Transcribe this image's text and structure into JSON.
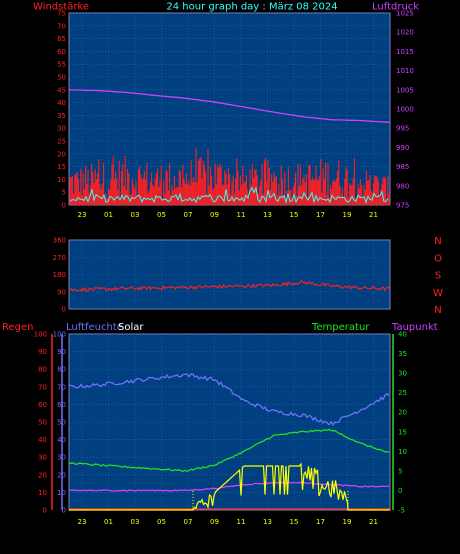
{
  "title": "24 hour graph day : März 08 2024",
  "hours": [
    "23",
    "01",
    "03",
    "05",
    "07",
    "09",
    "11",
    "13",
    "15",
    "17",
    "19",
    "21"
  ],
  "colors": {
    "bg": "#004080",
    "grid": "#3366aa",
    "wind": "#ff2020",
    "gust": "#30ffff",
    "pressure": "#d040ff",
    "winddir": "#ff2020",
    "humidity": "#7070ff",
    "temp": "#20e020",
    "dew": "#d040ff",
    "solar": "#ffff00",
    "rain": "#ff3030"
  },
  "panel1": {
    "left_label": "Windstärke",
    "right_label": "Luftdruck",
    "left_ticks": [
      "0",
      "5",
      "10",
      "15",
      "20",
      "25",
      "30",
      "35",
      "40",
      "45",
      "50",
      "55",
      "60",
      "65",
      "70",
      "75"
    ],
    "right_ticks": [
      "975",
      "980",
      "985",
      "990",
      "995",
      "1000",
      "1005",
      "1010",
      "1015",
      "1020",
      "1025"
    ]
  },
  "panel2": {
    "ticks": [
      "0",
      "90",
      "180",
      "270",
      "360"
    ],
    "dir_labels": [
      "N",
      "W",
      "S",
      "O",
      "N"
    ]
  },
  "panel3": {
    "rain_label": "Regen",
    "humidity_label": "Luftfeuchte",
    "solar_label": "Solar",
    "temp_label": "Temperatur",
    "dew_label": "Taupunkt",
    "left_ticks": [
      "0",
      "10",
      "20",
      "30",
      "40",
      "50",
      "60",
      "70",
      "80",
      "90",
      "100"
    ],
    "humidity_ticks": [
      "0",
      "10",
      "20",
      "30",
      "40",
      "50",
      "60",
      "70",
      "80",
      "90",
      "100"
    ],
    "right_ticks": [
      "-5",
      "0",
      "5",
      "10",
      "15",
      "20",
      "25",
      "30",
      "35",
      "40"
    ]
  },
  "chart_data": [
    {
      "type": "line",
      "xlabel": "",
      "ylabel": "Windstärke",
      "ylabel_right": "Luftdruck",
      "ylim": [
        0,
        75
      ],
      "ylim_right": [
        975,
        1025
      ],
      "x": [
        "23",
        "01",
        "03",
        "05",
        "07",
        "09",
        "11",
        "13",
        "15",
        "17",
        "19",
        "21"
      ],
      "series": [
        {
          "name": "Windstärke",
          "axis": "left",
          "values": [
            11,
            12,
            14,
            12,
            13,
            14,
            11,
            13,
            12,
            14,
            11,
            8
          ]
        },
        {
          "name": "Luftdruck",
          "axis": "right",
          "values": [
            1005,
            1004.8,
            1004.3,
            1003.5,
            1002.8,
            1001.8,
            1000.5,
            999.2,
            998.0,
            997.2,
            997.0,
            996.5
          ]
        }
      ]
    },
    {
      "type": "scatter",
      "ylabel": "",
      "ylim": [
        0,
        360
      ],
      "x": [
        "23",
        "01",
        "03",
        "05",
        "07",
        "09",
        "11",
        "13",
        "15",
        "17",
        "19",
        "21"
      ],
      "series": [
        {
          "name": "Windrichtung",
          "values": [
            100,
            103,
            107,
            110,
            113,
            116,
            120,
            124,
            140,
            120,
            110,
            105
          ]
        }
      ]
    },
    {
      "type": "line",
      "ylabel": "Luftfeuchte",
      "ylabel_right": "Temperatur",
      "ylim": [
        0,
        100
      ],
      "ylim_right": [
        -5,
        40
      ],
      "x": [
        "23",
        "01",
        "03",
        "05",
        "07",
        "09",
        "11",
        "13",
        "15",
        "17",
        "19",
        "21"
      ],
      "series": [
        {
          "name": "Luftfeuchte",
          "axis": "left",
          "values": [
            70,
            71,
            73,
            75,
            77,
            74,
            62,
            56,
            54,
            49,
            57,
            66
          ]
        },
        {
          "name": "Temperatur",
          "axis": "right",
          "values": [
            7,
            6.5,
            6,
            5.5,
            5,
            6.5,
            10,
            14,
            15,
            15.5,
            12,
            9.5
          ]
        },
        {
          "name": "Taupunkt",
          "axis": "right",
          "values": [
            0,
            0,
            0,
            0,
            0,
            0.5,
            1.5,
            2,
            2,
            1.5,
            1,
            1
          ]
        },
        {
          "name": "Solar",
          "axis": "left",
          "values": [
            0,
            0,
            0,
            0,
            0,
            10,
            25,
            25,
            25,
            18,
            0,
            0
          ]
        },
        {
          "name": "Regen",
          "axis": "left",
          "values": [
            0,
            0,
            0,
            0,
            0,
            0,
            0,
            0,
            0,
            0,
            0,
            0
          ]
        }
      ]
    }
  ]
}
